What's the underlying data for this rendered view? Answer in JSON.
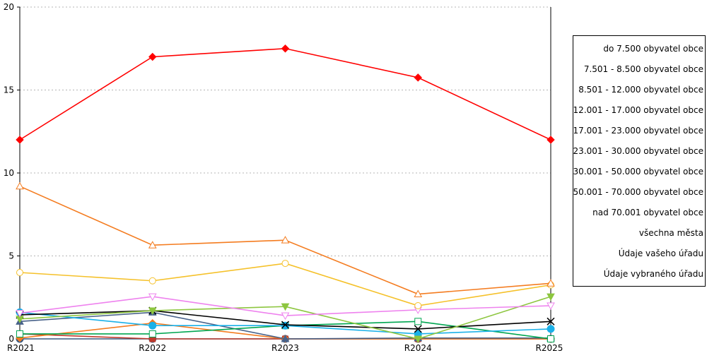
{
  "chart_data": {
    "type": "line",
    "categories": [
      "R2021",
      "R2022",
      "R2023",
      "R2024",
      "R2025"
    ],
    "ylim": [
      0,
      20
    ],
    "yticks": [
      0,
      5,
      10,
      15,
      20
    ],
    "grid": true,
    "legend_position": "right",
    "series": [
      {
        "name": "do 7.500 obyvatel obce",
        "color": "#ff0000",
        "marker": "diamond-filled",
        "values": [
          12.0,
          17.0,
          17.5,
          15.75,
          12.0
        ]
      },
      {
        "name": "7.501 - 8.500 obyvatel obce",
        "color": "#f47c20",
        "marker": "triangle-open",
        "values": [
          9.2,
          5.65,
          5.95,
          2.7,
          3.35
        ]
      },
      {
        "name": "8.501 - 12.000 obyvatel obce",
        "color": "#f5c12a",
        "marker": "circle-open",
        "values": [
          4.0,
          3.5,
          4.55,
          2.0,
          3.25
        ]
      },
      {
        "name": "12.001 - 17.000 obyvatel obce",
        "color": "#ee82ee",
        "marker": "triangle-down-open",
        "values": [
          1.55,
          2.55,
          1.4,
          1.75,
          2.0
        ]
      },
      {
        "name": "17.001 - 23.000 obyvatel obce",
        "color": "#8dc63f",
        "marker": "triangle-down-filled",
        "values": [
          1.2,
          1.7,
          1.95,
          0.0,
          2.55
        ]
      },
      {
        "name": "23.001 - 30.000 obyvatel obce",
        "color": "#000000",
        "marker": "x",
        "values": [
          1.45,
          1.7,
          0.85,
          0.6,
          1.05
        ]
      },
      {
        "name": "30.001 - 50.000 obyvatel obce",
        "color": "#1ab0e8",
        "marker": "circle-filled",
        "values": [
          1.6,
          0.8,
          0.8,
          0.3,
          0.6
        ]
      },
      {
        "name": "50.001 - 70.000 obyvatel obce",
        "color": "#00a651",
        "marker": "square-open",
        "values": [
          0.3,
          0.3,
          0.8,
          1.05,
          0.0
        ]
      },
      {
        "name": "nad 70.001 obyvatel obce",
        "color": "#48628a",
        "marker": "triangle-filled",
        "values": [
          1.05,
          1.6,
          0.0,
          0.05,
          0.05
        ]
      },
      {
        "name": "všechna města",
        "color": "#f47c20",
        "marker": "diamond-filled",
        "values": [
          0.05,
          0.95,
          0.0,
          0.0,
          0.0
        ]
      },
      {
        "name": "Údaje vašeho úřadu",
        "color": "#c0392b",
        "marker": "square-filled",
        "values": [
          0.3,
          0.0,
          0.0,
          0.0,
          0.0
        ]
      },
      {
        "name": "Údaje vybraného úřadu",
        "color": "#3a5a80",
        "marker": "circle-filled",
        "values": [
          0.0,
          0.0,
          0.0,
          0.0,
          0.0
        ]
      }
    ]
  }
}
